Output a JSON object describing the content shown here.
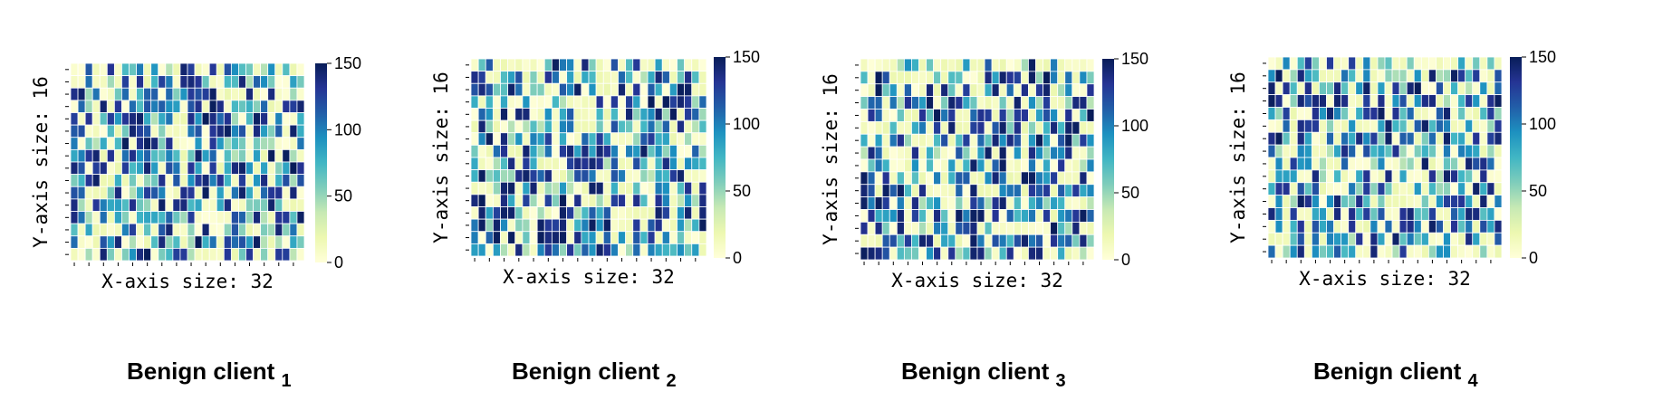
{
  "chart_data": [
    {
      "type": "heatmap",
      "caption": "Benign client",
      "caption_subscript": "1",
      "xlabel": "X-axis size: 32",
      "ylabel": "Y-axis size: 16",
      "rows": 16,
      "cols": 32,
      "seed": 11,
      "colorbar": {
        "min": 0,
        "max": 150,
        "ticks": [
          "0",
          "50",
          "100",
          "150"
        ],
        "colormap": "YlGnBu"
      }
    },
    {
      "type": "heatmap",
      "caption": "Benign client",
      "caption_subscript": "2",
      "xlabel": "X-axis size: 32",
      "ylabel": "Y-axis size: 16",
      "rows": 16,
      "cols": 32,
      "seed": 23,
      "colorbar": {
        "min": 0,
        "max": 150,
        "ticks": [
          "0",
          "50",
          "100",
          "150"
        ],
        "colormap": "YlGnBu"
      }
    },
    {
      "type": "heatmap",
      "caption": "Benign client",
      "caption_subscript": "3",
      "xlabel": "X-axis size: 32",
      "ylabel": "Y-axis size: 16",
      "rows": 16,
      "cols": 32,
      "seed": 37,
      "colorbar": {
        "min": 0,
        "max": 150,
        "ticks": [
          "0",
          "50",
          "100",
          "150"
        ],
        "colormap": "YlGnBu"
      }
    },
    {
      "type": "heatmap",
      "caption": "Benign client",
      "caption_subscript": "4",
      "xlabel": "X-axis size: 32",
      "ylabel": "Y-axis size: 16",
      "rows": 16,
      "cols": 32,
      "seed": 53,
      "colorbar": {
        "min": 0,
        "max": 150,
        "ticks": [
          "0",
          "50",
          "100",
          "150"
        ],
        "colormap": "YlGnBu"
      }
    }
  ]
}
